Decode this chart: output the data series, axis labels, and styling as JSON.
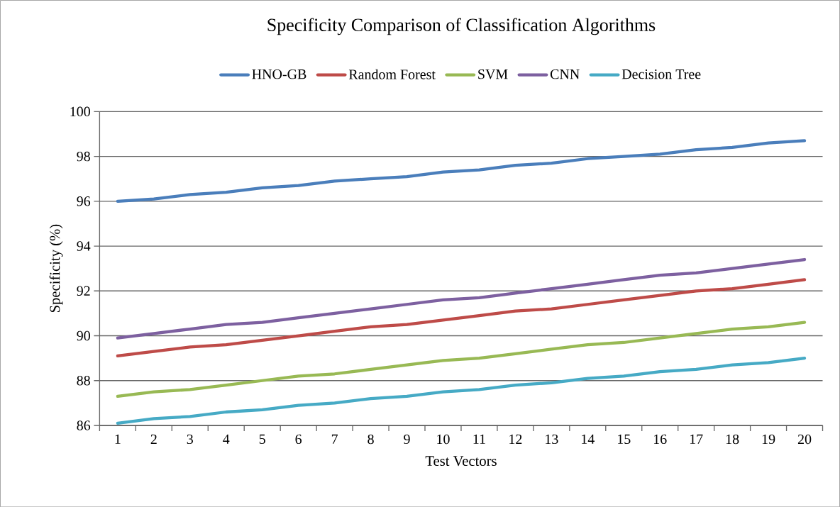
{
  "chart_data": {
    "type": "line",
    "title": "Specificity Comparison of Classification Algorithms",
    "xlabel": "Test Vectors",
    "ylabel": "Specificity (%)",
    "categories": [
      "1",
      "2",
      "3",
      "4",
      "5",
      "6",
      "7",
      "8",
      "9",
      "10",
      "11",
      "12",
      "13",
      "14",
      "15",
      "16",
      "17",
      "18",
      "19",
      "20"
    ],
    "series": [
      {
        "name": "HNO-GB",
        "color": "#4a7ebb",
        "values": [
          96.0,
          96.1,
          96.3,
          96.4,
          96.6,
          96.7,
          96.9,
          97.0,
          97.1,
          97.3,
          97.4,
          97.6,
          97.7,
          97.9,
          98.0,
          98.1,
          98.3,
          98.4,
          98.6,
          98.7
        ]
      },
      {
        "name": "Random Forest",
        "color": "#be4b48",
        "values": [
          89.1,
          89.3,
          89.5,
          89.6,
          89.8,
          90.0,
          90.2,
          90.4,
          90.5,
          90.7,
          90.9,
          91.1,
          91.2,
          91.4,
          91.6,
          91.8,
          92.0,
          92.1,
          92.3,
          92.5
        ]
      },
      {
        "name": "SVM",
        "color": "#98b954",
        "values": [
          87.3,
          87.5,
          87.6,
          87.8,
          88.0,
          88.2,
          88.3,
          88.5,
          88.7,
          88.9,
          89.0,
          89.2,
          89.4,
          89.6,
          89.7,
          89.9,
          90.1,
          90.3,
          90.4,
          90.6
        ]
      },
      {
        "name": "CNN",
        "color": "#7d60a0",
        "values": [
          89.9,
          90.1,
          90.3,
          90.5,
          90.6,
          90.8,
          91.0,
          91.2,
          91.4,
          91.6,
          91.7,
          91.9,
          92.1,
          92.3,
          92.5,
          92.7,
          92.8,
          93.0,
          93.2,
          93.4
        ]
      },
      {
        "name": "Decision Tree",
        "color": "#46aac5",
        "values": [
          86.1,
          86.3,
          86.4,
          86.6,
          86.7,
          86.9,
          87.0,
          87.2,
          87.3,
          87.5,
          87.6,
          87.8,
          87.9,
          88.1,
          88.2,
          88.4,
          88.5,
          88.7,
          88.8,
          89.0
        ]
      }
    ],
    "ylim": [
      86,
      100
    ],
    "yticks": [
      86,
      88,
      90,
      92,
      94,
      96,
      98,
      100
    ],
    "grid": "y",
    "legend": "top",
    "marker": "none",
    "line_style": "solid"
  }
}
